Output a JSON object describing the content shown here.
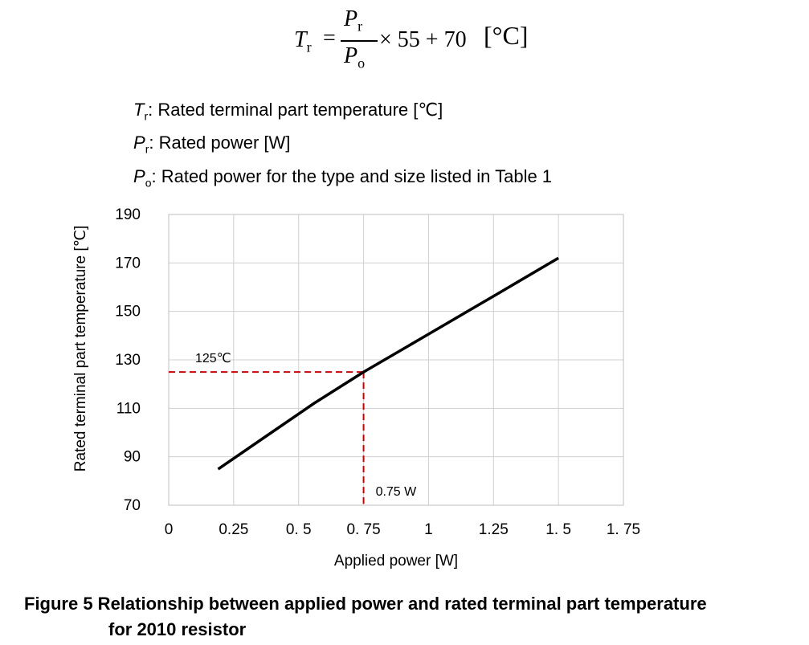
{
  "formula": {
    "lhs": "T",
    "lhs_sub": "r",
    "equals": "=",
    "num": "P",
    "num_sub": "r",
    "den": "P",
    "den_sub": "o",
    "rest": "× 55 + 70",
    "unit": "[°C]"
  },
  "definitions": [
    {
      "symbol": "T",
      "sub": "r",
      "text": ": Rated terminal part temperature [℃]"
    },
    {
      "symbol": "P",
      "sub": "r",
      "text": ": Rated power [W]"
    },
    {
      "symbol": "P",
      "sub": "o",
      "text": ": Rated power for the type and size listed in Table 1"
    }
  ],
  "caption": {
    "line1": "Figure 5  Relationship between applied power and rated terminal part temperature",
    "line2": "for 2010 resistor"
  },
  "chart_data": {
    "type": "line",
    "title": "",
    "xlabel": "Applied power [W]",
    "ylabel": "Rated terminal part temperature [℃]",
    "xlim": [
      0,
      1.75
    ],
    "ylim": [
      70,
      190
    ],
    "x_ticks": [
      {
        "value": 0,
        "label": "0"
      },
      {
        "value": 0.25,
        "label": "0.25"
      },
      {
        "value": 0.5,
        "label": "0. 5"
      },
      {
        "value": 0.75,
        "label": "0. 75"
      },
      {
        "value": 1,
        "label": "1"
      },
      {
        "value": 1.25,
        "label": "1.25"
      },
      {
        "value": 1.5,
        "label": "1. 5"
      },
      {
        "value": 1.75,
        "label": "1. 75"
      }
    ],
    "y_ticks": [
      {
        "value": 70,
        "label": "70"
      },
      {
        "value": 90,
        "label": "90"
      },
      {
        "value": 110,
        "label": "110"
      },
      {
        "value": 130,
        "label": "130"
      },
      {
        "value": 150,
        "label": "150"
      },
      {
        "value": 170,
        "label": "170"
      },
      {
        "value": 190,
        "label": "190"
      }
    ],
    "grid": true,
    "series": [
      {
        "color": "#000000",
        "points": [
          [
            0.19,
            84.9
          ],
          [
            0.375,
            98.5
          ],
          [
            0.56,
            112.1
          ],
          [
            0.75,
            125
          ],
          [
            1.0,
            140.6
          ],
          [
            1.25,
            156.3
          ],
          [
            1.5,
            172
          ]
        ]
      }
    ],
    "reference_lines": {
      "color": "#cc0000",
      "point": [
        0.75,
        125
      ],
      "y_label": "125℃",
      "x_label": "0.75 W"
    }
  }
}
